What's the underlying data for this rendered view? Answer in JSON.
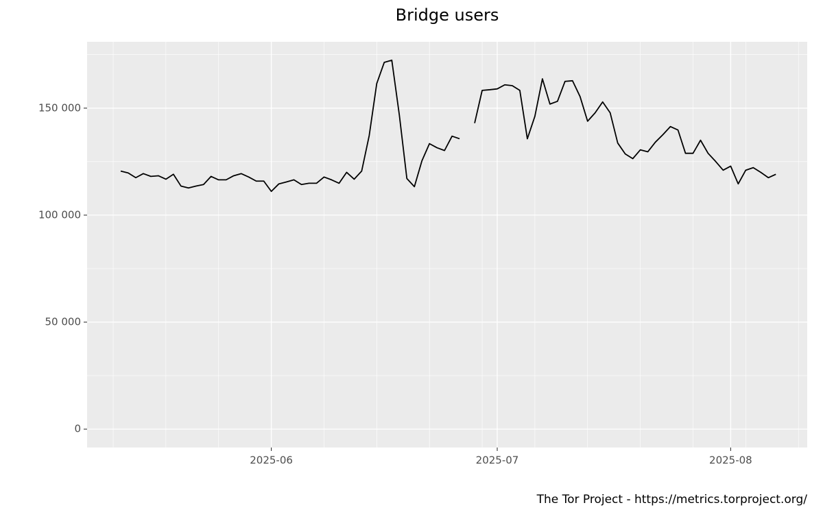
{
  "chart_data": {
    "type": "line",
    "title": "Bridge users",
    "caption": "The Tor Project - https://metrics.torproject.org/",
    "categories": [
      null,
      null,
      null,
      null,
      null,
      null,
      null,
      null,
      null,
      null,
      null,
      null,
      null,
      null,
      null,
      null,
      null,
      null,
      null,
      null,
      "2025-06",
      null,
      null,
      null,
      null,
      null,
      null,
      null,
      null,
      null,
      null,
      null,
      null,
      null,
      null,
      null,
      null,
      null,
      null,
      null,
      null,
      null,
      null,
      null,
      null,
      null,
      null,
      null,
      null,
      null,
      "2025-07",
      null,
      null,
      null,
      null,
      null,
      null,
      null,
      null,
      null,
      null,
      null,
      null,
      null,
      null,
      null,
      null,
      null,
      null,
      null,
      null,
      null,
      null,
      null,
      null,
      null,
      null,
      null,
      null,
      null,
      null,
      "2025-08",
      null,
      null,
      null,
      null,
      null,
      null
    ],
    "values": [
      120600,
      119700,
      117500,
      119400,
      118100,
      118400,
      116800,
      119100,
      113600,
      112700,
      113600,
      114300,
      118100,
      116500,
      116500,
      118400,
      119400,
      117800,
      115900,
      115900,
      111100,
      114600,
      115500,
      116500,
      114300,
      114900,
      114900,
      117800,
      116500,
      114900,
      120000,
      116800,
      120600,
      137200,
      161500,
      171400,
      172400,
      146800,
      117100,
      113300,
      125400,
      133400,
      131500,
      130200,
      136900,
      135700,
      null,
      143000,
      158300,
      158600,
      159000,
      160900,
      160500,
      158300,
      135700,
      146200,
      163700,
      151900,
      153200,
      162500,
      162800,
      155400,
      143900,
      147800,
      152900,
      147800,
      133700,
      128600,
      126400,
      130500,
      129600,
      134100,
      137600,
      141400,
      139800,
      128900,
      128900,
      135000,
      128900,
      125100,
      121000,
      122900,
      114600,
      121000,
      122200,
      120000,
      117500,
      119100
    ],
    "color": "#000000",
    "ylim": [
      -8600,
      181000
    ],
    "yticks": [
      0,
      {
        "value": 50000,
        "label": "50 000"
      },
      {
        "value": 100000,
        "label": "100 000"
      },
      {
        "value": 150000,
        "label": "150 000"
      }
    ],
    "grid": true
  }
}
